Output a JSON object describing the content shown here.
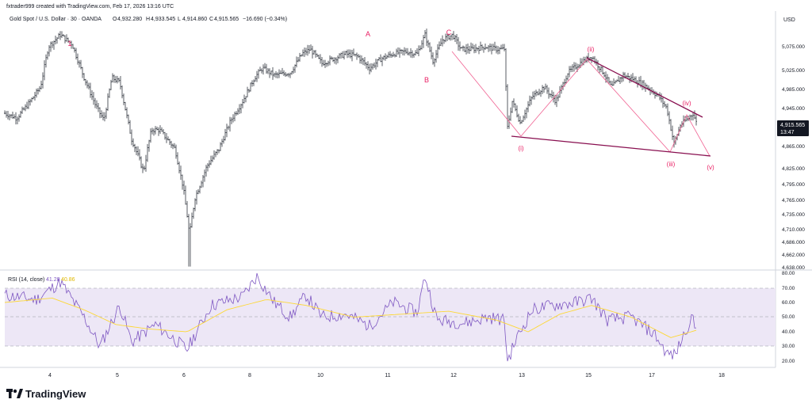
{
  "header": {
    "caption": "fxtrader999 created with TradingView.com, Feb 17, 2026 13:16 UTC",
    "symbol": "Gold Spot / U.S. Dollar · 30 · OANDA",
    "open_label": "O",
    "open": "4,932.280",
    "high_label": "H",
    "high": "4,933.545",
    "low_label": "L",
    "low": "4,914.860",
    "close_label": "C",
    "close": "4,915.565",
    "change": "−16.690 (−0.34%)"
  },
  "price_axis": {
    "currency": "USD",
    "ticks": [
      "5,075.000",
      "5,025.000",
      "4,985.000",
      "4,945.000",
      "4,865.000",
      "4,825.000",
      "4,795.000",
      "4,765.000",
      "4,735.000",
      "4,710.000",
      "4,686.000",
      "4,662.000",
      "4,638.000"
    ],
    "last_price": "4,915.565",
    "countdown": "13:47"
  },
  "rsi_panel": {
    "label": "RSI (14, close)",
    "rsi_value": "41.28",
    "ma_value": "40.86",
    "ticks": [
      "80.00",
      "70.00",
      "60.00",
      "50.00",
      "40.00",
      "30.00",
      "20.00"
    ],
    "upper_band": 70,
    "lower_band": 30
  },
  "time_axis": {
    "ticks": [
      "4",
      "5",
      "6",
      "8",
      "10",
      "11",
      "12",
      "13",
      "15",
      "17",
      "18"
    ]
  },
  "wave_labels": {
    "one": "1",
    "a": "A",
    "b": "B",
    "c": "C",
    "i": "(i)",
    "ii": "(ii)",
    "iii": "(iii)",
    "iv": "(iv)",
    "v": "(v)"
  },
  "colors": {
    "candle": "#131722",
    "wave_pink": "#e91e63",
    "wave_line": "#f06292",
    "trendline": "#880e4f",
    "rsi_line": "#7e57c2",
    "rsi_ma": "#fdd835",
    "rsi_band": "#ede7f6",
    "last_price_bg": "#131722"
  },
  "footer": {
    "brand": "TradingView"
  },
  "chart_data": [
    {
      "type": "candlestick",
      "title": "",
      "currency": "USD",
      "ylim": [
        4638,
        5100
      ],
      "x_ticks": [
        "4",
        "5",
        "6",
        "8",
        "10",
        "11",
        "12",
        "13",
        "15",
        "17",
        "18"
      ],
      "waypoints_close": [
        {
          "x": 0,
          "y": 4935
        },
        {
          "x": 15,
          "y": 4925
        },
        {
          "x": 30,
          "y": 4955
        },
        {
          "x": 45,
          "y": 4990
        },
        {
          "x": 55,
          "y": 5075
        },
        {
          "x": 70,
          "y": 5100
        },
        {
          "x": 85,
          "y": 5080
        },
        {
          "x": 100,
          "y": 5010
        },
        {
          "x": 115,
          "y": 4950
        },
        {
          "x": 125,
          "y": 4920
        },
        {
          "x": 135,
          "y": 5010
        },
        {
          "x": 145,
          "y": 5000
        },
        {
          "x": 160,
          "y": 4880
        },
        {
          "x": 175,
          "y": 4820
        },
        {
          "x": 185,
          "y": 4900
        },
        {
          "x": 195,
          "y": 4900
        },
        {
          "x": 205,
          "y": 4880
        },
        {
          "x": 215,
          "y": 4860
        },
        {
          "x": 225,
          "y": 4790
        },
        {
          "x": 233,
          "y": 4700
        },
        {
          "x": 240,
          "y": 4770
        },
        {
          "x": 255,
          "y": 4830
        },
        {
          "x": 270,
          "y": 4860
        },
        {
          "x": 285,
          "y": 4920
        },
        {
          "x": 300,
          "y": 4960
        },
        {
          "x": 315,
          "y": 5010
        },
        {
          "x": 325,
          "y": 5030
        },
        {
          "x": 340,
          "y": 5015
        },
        {
          "x": 360,
          "y": 5020
        },
        {
          "x": 375,
          "y": 5060
        },
        {
          "x": 385,
          "y": 5070
        },
        {
          "x": 400,
          "y": 5040
        },
        {
          "x": 415,
          "y": 5050
        },
        {
          "x": 430,
          "y": 5060
        },
        {
          "x": 445,
          "y": 5055
        },
        {
          "x": 460,
          "y": 5030
        },
        {
          "x": 475,
          "y": 5050
        },
        {
          "x": 490,
          "y": 5060
        },
        {
          "x": 505,
          "y": 5065
        },
        {
          "x": 520,
          "y": 5060
        },
        {
          "x": 530,
          "y": 5100
        },
        {
          "x": 540,
          "y": 5045
        },
        {
          "x": 552,
          "y": 5090
        },
        {
          "x": 565,
          "y": 5100
        },
        {
          "x": 575,
          "y": 5070
        },
        {
          "x": 590,
          "y": 5070
        },
        {
          "x": 605,
          "y": 5075
        },
        {
          "x": 620,
          "y": 5070
        },
        {
          "x": 630,
          "y": 5070
        },
        {
          "x": 634,
          "y": 4905
        },
        {
          "x": 640,
          "y": 4960
        },
        {
          "x": 650,
          "y": 4915
        },
        {
          "x": 665,
          "y": 4970
        },
        {
          "x": 680,
          "y": 4990
        },
        {
          "x": 695,
          "y": 4960
        },
        {
          "x": 710,
          "y": 5020
        },
        {
          "x": 725,
          "y": 5040
        },
        {
          "x": 740,
          "y": 5055
        },
        {
          "x": 755,
          "y": 5020
        },
        {
          "x": 765,
          "y": 4990
        },
        {
          "x": 780,
          "y": 5015
        },
        {
          "x": 795,
          "y": 5005
        },
        {
          "x": 810,
          "y": 4990
        },
        {
          "x": 825,
          "y": 4970
        },
        {
          "x": 835,
          "y": 4945
        },
        {
          "x": 844,
          "y": 4870
        },
        {
          "x": 852,
          "y": 4910
        },
        {
          "x": 862,
          "y": 4925
        },
        {
          "x": 868,
          "y": 4935
        },
        {
          "x": 872,
          "y": 4916
        }
      ],
      "extremes": [
        {
          "label": "low",
          "x": 233,
          "y": 4640
        },
        {
          "label": "high",
          "x": 530,
          "y": 5110
        }
      ]
    },
    {
      "type": "line",
      "title": "RSI (14, close)",
      "ylim": [
        15,
        82
      ],
      "bands": [
        30,
        70
      ],
      "series": [
        {
          "name": "RSI",
          "points": [
            {
              "x": 0,
              "y": 65
            },
            {
              "x": 40,
              "y": 62
            },
            {
              "x": 70,
              "y": 74
            },
            {
              "x": 100,
              "y": 50
            },
            {
              "x": 120,
              "y": 30
            },
            {
              "x": 145,
              "y": 58
            },
            {
              "x": 160,
              "y": 33
            },
            {
              "x": 190,
              "y": 45
            },
            {
              "x": 230,
              "y": 28
            },
            {
              "x": 260,
              "y": 58
            },
            {
              "x": 300,
              "y": 64
            },
            {
              "x": 318,
              "y": 78
            },
            {
              "x": 340,
              "y": 60
            },
            {
              "x": 360,
              "y": 50
            },
            {
              "x": 380,
              "y": 65
            },
            {
              "x": 400,
              "y": 50
            },
            {
              "x": 430,
              "y": 52
            },
            {
              "x": 460,
              "y": 44
            },
            {
              "x": 490,
              "y": 60
            },
            {
              "x": 520,
              "y": 53
            },
            {
              "x": 530,
              "y": 78
            },
            {
              "x": 545,
              "y": 48
            },
            {
              "x": 580,
              "y": 46
            },
            {
              "x": 610,
              "y": 50
            },
            {
              "x": 630,
              "y": 48
            },
            {
              "x": 634,
              "y": 20
            },
            {
              "x": 645,
              "y": 35
            },
            {
              "x": 665,
              "y": 55
            },
            {
              "x": 690,
              "y": 58
            },
            {
              "x": 720,
              "y": 60
            },
            {
              "x": 740,
              "y": 63
            },
            {
              "x": 760,
              "y": 48
            },
            {
              "x": 790,
              "y": 50
            },
            {
              "x": 820,
              "y": 38
            },
            {
              "x": 835,
              "y": 25
            },
            {
              "x": 845,
              "y": 24
            },
            {
              "x": 855,
              "y": 36
            },
            {
              "x": 866,
              "y": 50
            },
            {
              "x": 872,
              "y": 41
            }
          ]
        },
        {
          "name": "RSI-based MA",
          "points": [
            {
              "x": 0,
              "y": 60
            },
            {
              "x": 60,
              "y": 63
            },
            {
              "x": 100,
              "y": 55
            },
            {
              "x": 140,
              "y": 45
            },
            {
              "x": 180,
              "y": 42
            },
            {
              "x": 230,
              "y": 40
            },
            {
              "x": 280,
              "y": 55
            },
            {
              "x": 330,
              "y": 62
            },
            {
              "x": 380,
              "y": 58
            },
            {
              "x": 440,
              "y": 50
            },
            {
              "x": 500,
              "y": 52
            },
            {
              "x": 560,
              "y": 54
            },
            {
              "x": 620,
              "y": 48
            },
            {
              "x": 660,
              "y": 40
            },
            {
              "x": 700,
              "y": 52
            },
            {
              "x": 740,
              "y": 58
            },
            {
              "x": 790,
              "y": 50
            },
            {
              "x": 840,
              "y": 36
            },
            {
              "x": 872,
              "y": 41
            }
          ]
        }
      ]
    }
  ]
}
